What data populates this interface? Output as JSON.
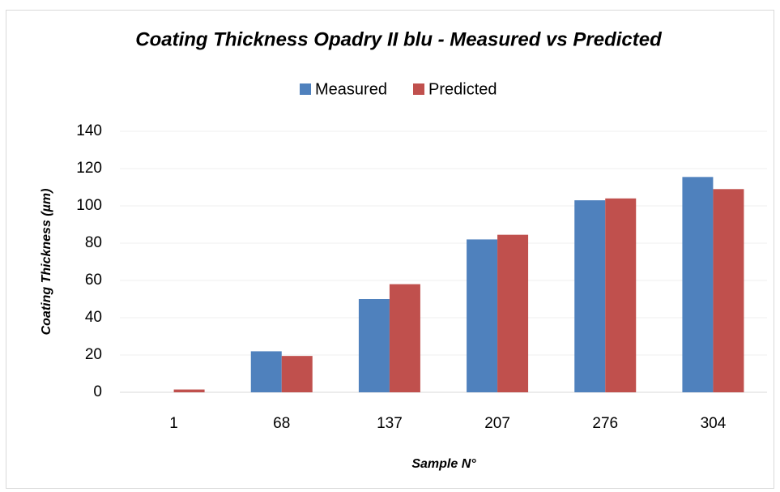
{
  "chart_data": {
    "type": "bar",
    "title": "Coating Thickness Opadry II blu - Measured vs Predicted",
    "x_label": "Sample N°",
    "y_label": "Coating Thickness (µm)",
    "categories": [
      "1",
      "68",
      "137",
      "207",
      "276",
      "304"
    ],
    "series": [
      {
        "name": "Measured",
        "color": "#4f81bd",
        "values": [
          0,
          22,
          50,
          82,
          103,
          115.5
        ]
      },
      {
        "name": "Predicted",
        "color": "#c0504d",
        "values": [
          1.5,
          19.5,
          58,
          84.5,
          104,
          109
        ]
      }
    ],
    "ylim": [
      0,
      140
    ],
    "yticks": [
      0,
      20,
      40,
      60,
      80,
      100,
      120,
      140
    ],
    "grid": true,
    "legend": "top"
  }
}
